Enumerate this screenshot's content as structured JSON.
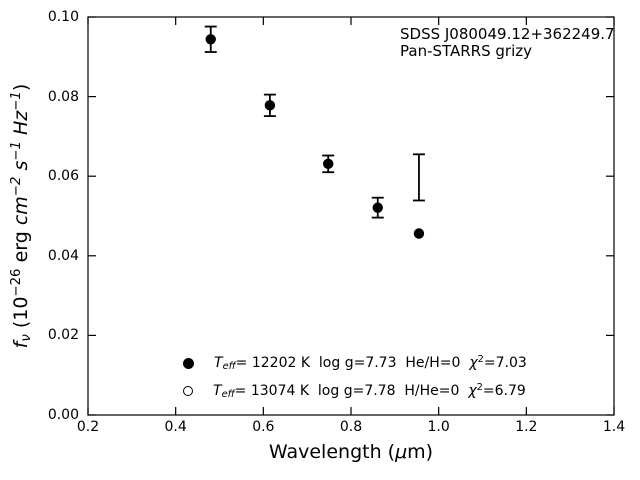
{
  "figure": {
    "background": "#ffffff",
    "foreground": "#000000"
  },
  "chart_data": {
    "type": "scatter",
    "title": "",
    "xlabel": "Wavelength (μm)",
    "ylabel": "f_ν (10⁻²⁶ erg cm⁻² s⁻¹ Hz⁻¹)",
    "xlabel_parts": [
      {
        "t": "Wavelength (",
        "s": ""
      },
      {
        "t": "μ",
        "s": "i"
      },
      {
        "t": "m)",
        "s": ""
      }
    ],
    "ylabel_parts": [
      {
        "t": "f",
        "s": "i"
      },
      {
        "t": "ν",
        "s": "isub"
      },
      {
        "t": " (10",
        "s": ""
      },
      {
        "t": "−26",
        "s": "sup"
      },
      {
        "t": " erg ",
        "s": ""
      },
      {
        "t": "cm",
        "s": "i"
      },
      {
        "t": "−2",
        "s": "isup"
      },
      {
        "t": " ",
        "s": ""
      },
      {
        "t": "s",
        "s": "i"
      },
      {
        "t": "−1",
        "s": "isup"
      },
      {
        "t": " ",
        "s": ""
      },
      {
        "t": "Hz",
        "s": "i"
      },
      {
        "t": "−1",
        "s": "isup"
      },
      {
        "t": ")",
        "s": ""
      }
    ],
    "xlim": [
      0.2,
      1.4
    ],
    "ylim": [
      0.0,
      0.1
    ],
    "xtick_values": [
      0.2,
      0.4,
      0.6,
      0.8,
      1.0,
      1.2,
      1.4
    ],
    "xtick_labels": [
      "0.2",
      "0.4",
      "0.6",
      "0.8",
      "1.0",
      "1.2",
      "1.4"
    ],
    "ytick_values": [
      0.0,
      0.02,
      0.04,
      0.06,
      0.08,
      0.1
    ],
    "ytick_labels": [
      "0.00",
      "0.02",
      "0.04",
      "0.06",
      "0.08",
      "0.10"
    ],
    "grid": false,
    "tick_direction": "in",
    "annotation_lines": [
      "SDSS J080049.12+362249.7",
      "Pan-STARRS grizy"
    ],
    "series": [
      {
        "name": "photometry-filled-circles-with-errorbars",
        "marker": "filled-circle",
        "color": "#000000",
        "points": [
          {
            "x": 0.48,
            "y": 0.0944,
            "yerr": 0.0032
          },
          {
            "x": 0.615,
            "y": 0.0778,
            "yerr": 0.0027
          },
          {
            "x": 0.748,
            "y": 0.0631,
            "yerr": 0.0021
          },
          {
            "x": 0.861,
            "y": 0.0521,
            "yerr": 0.0025
          }
        ]
      },
      {
        "name": "y-band-errorbar-only",
        "marker": "none",
        "color": "#000000",
        "points": [
          {
            "x": 0.955,
            "y": 0.0597,
            "yerr": 0.0058
          }
        ]
      },
      {
        "name": "y-band-model-point",
        "marker": "filled-circle",
        "color": "#000000",
        "points": [
          {
            "x": 0.955,
            "y": 0.0456
          }
        ]
      }
    ],
    "legend": {
      "position": "lower-center-inside",
      "frame": false,
      "rows": [
        {
          "marker": "filled-circle",
          "text": "T_eff= 12202 K  log g=7.73  He/H=0  χ²=7.03",
          "text_parts": [
            {
              "t": "T",
              "s": "i"
            },
            {
              "t": "eff",
              "s": "isub"
            },
            {
              "t": "= 12202 K  log g=7.73  He/H=0  ",
              "s": ""
            },
            {
              "t": "χ",
              "s": "i"
            },
            {
              "t": "2",
              "s": "sup"
            },
            {
              "t": "=7.03",
              "s": ""
            }
          ]
        },
        {
          "marker": "open-circle",
          "text": "T_eff= 13074 K  log g=7.78  H/He=0  χ²=6.79",
          "text_parts": [
            {
              "t": "T",
              "s": "i"
            },
            {
              "t": "eff",
              "s": "isub"
            },
            {
              "t": "= 13074 K  log g=7.78  H/He=0  ",
              "s": ""
            },
            {
              "t": "χ",
              "s": "i"
            },
            {
              "t": "2",
              "s": "sup"
            },
            {
              "t": "=6.79",
              "s": ""
            }
          ]
        }
      ]
    }
  }
}
